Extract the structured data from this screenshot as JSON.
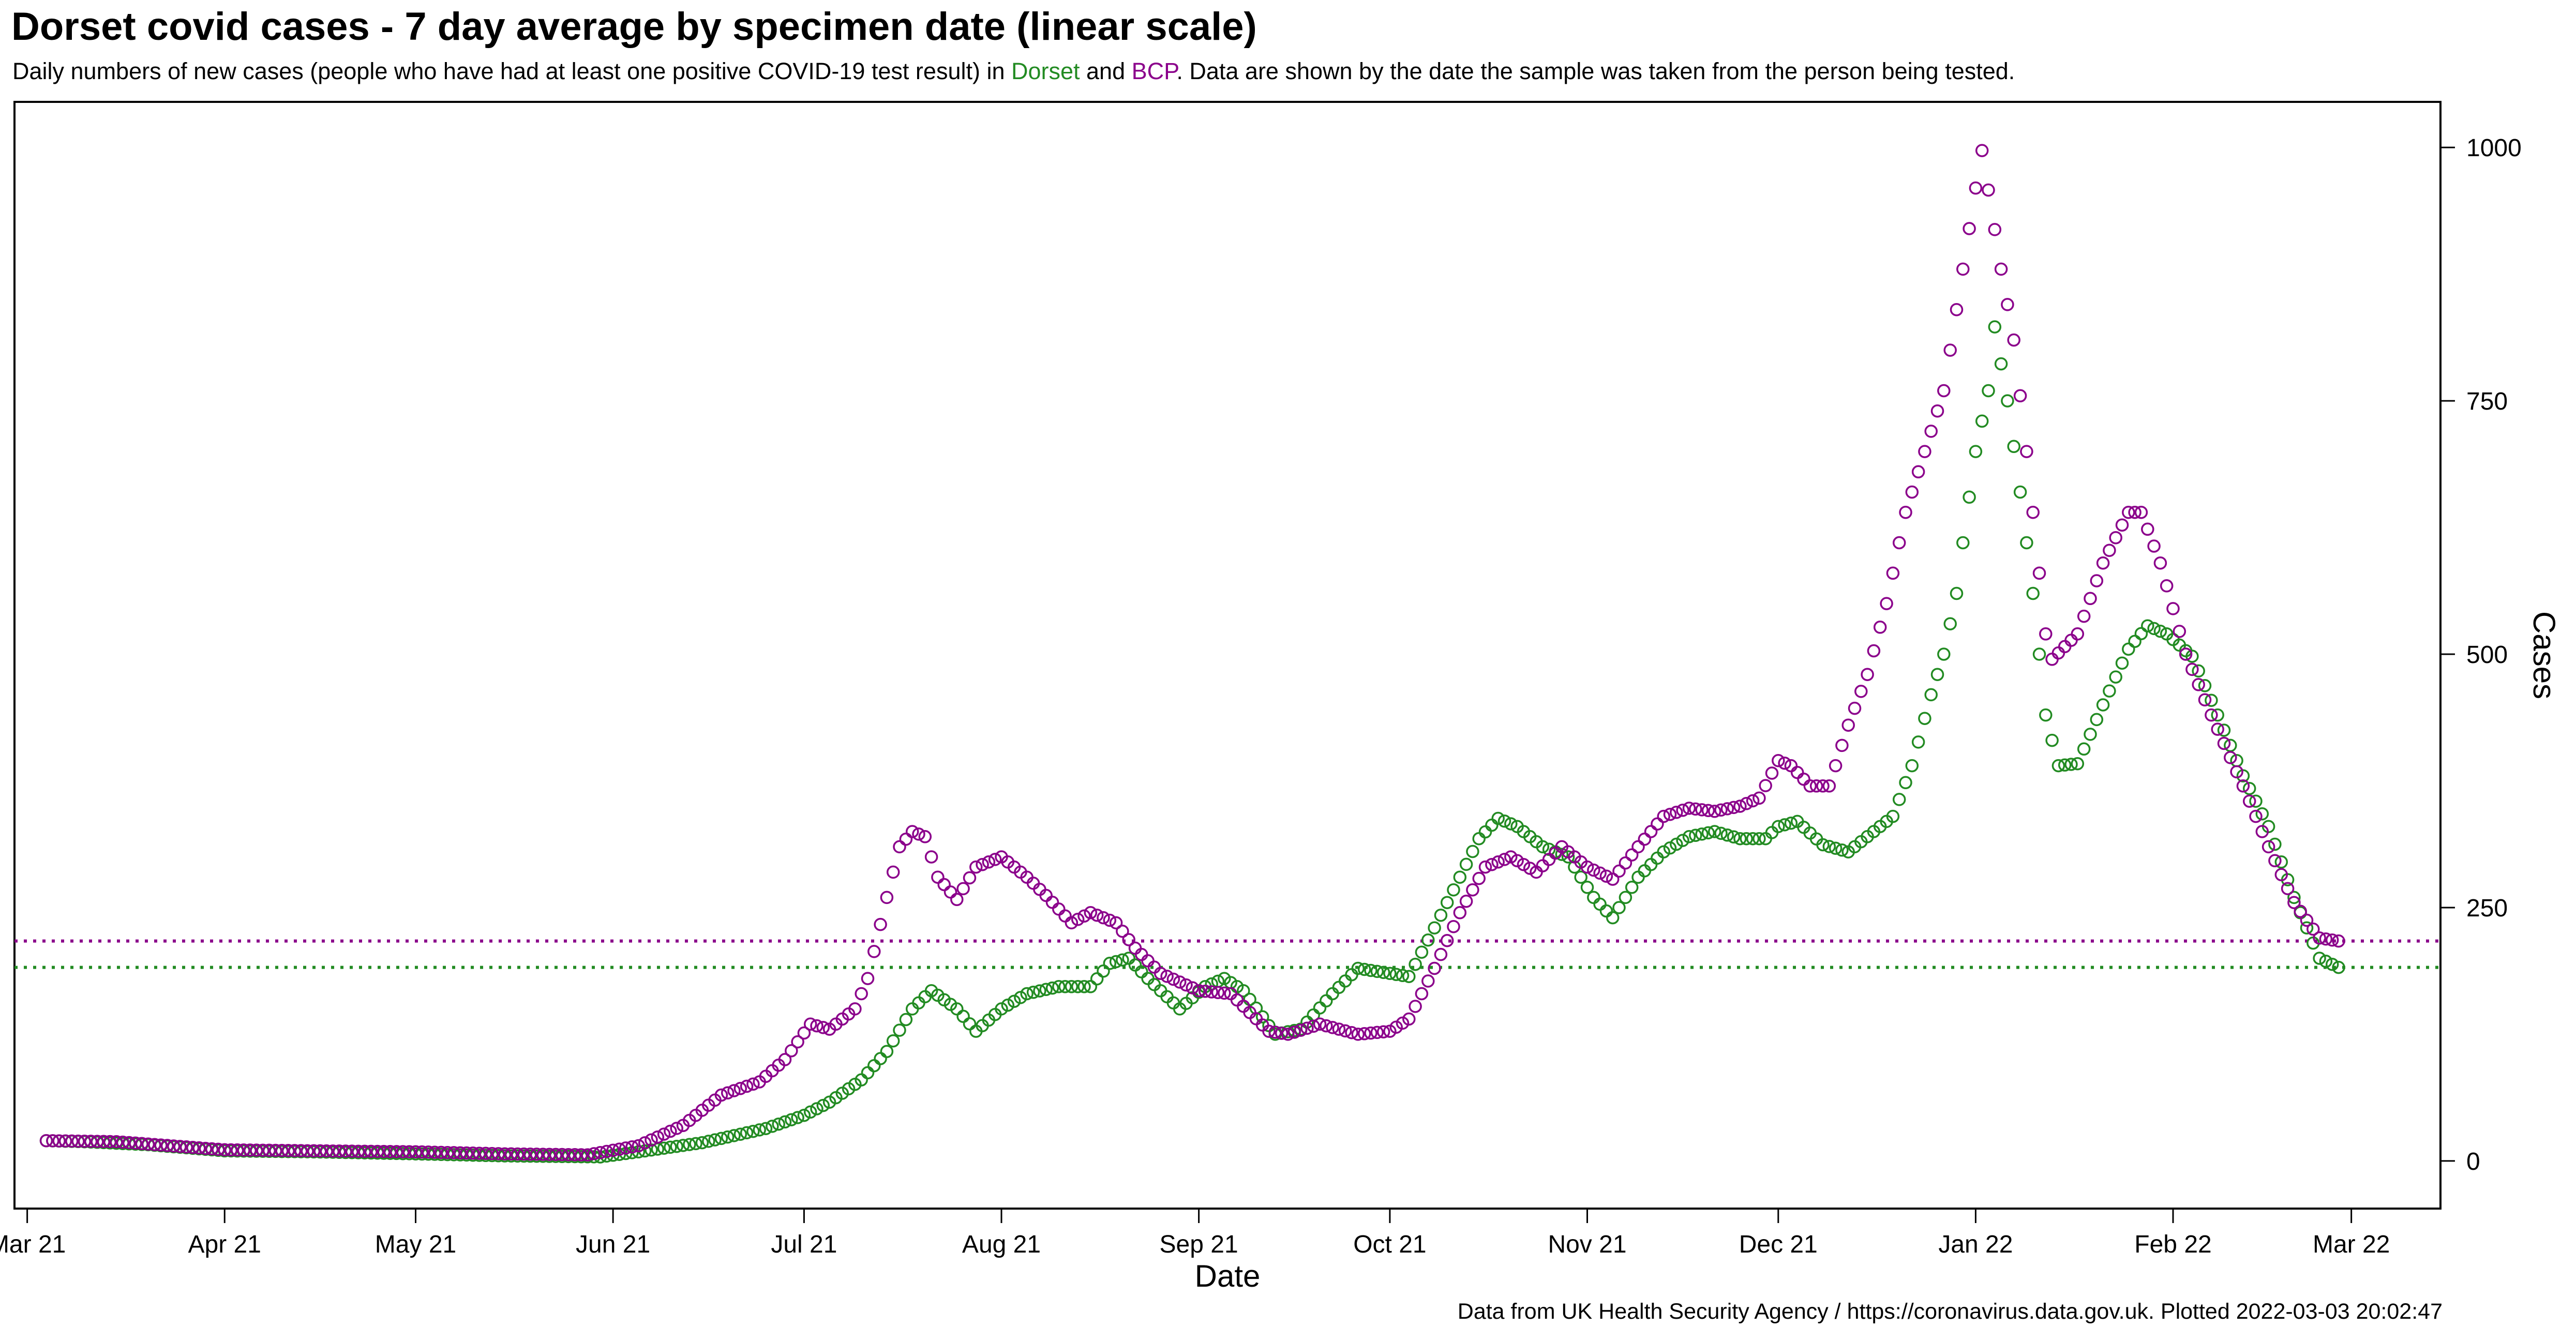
{
  "title": "Dorset covid cases - 7 day average by specimen date (linear scale)",
  "subtitle": {
    "before": "Daily numbers of new cases (people who have had at least one positive COVID-19 test result) in ",
    "dorset": "Dorset",
    "middle": " and ",
    "bcp": "BCP",
    "after": ". Data are shown by the date the sample was taken from the person being tested."
  },
  "footer": "Data from UK Health Security Agency / https://coronavirus.data.gov.uk. Plotted 2022-03-03 20:02:47",
  "colors": {
    "Dorset": "#228B22",
    "BCP": "#8B008B"
  },
  "chart_data": {
    "type": "scatter",
    "xlabel": "Date",
    "ylabel": "Cases",
    "x_ticks": [
      {
        "date": "2021-03-01",
        "label": "Mar 21"
      },
      {
        "date": "2021-04-01",
        "label": "Apr 21"
      },
      {
        "date": "2021-05-01",
        "label": "May 21"
      },
      {
        "date": "2021-06-01",
        "label": "Jun 21"
      },
      {
        "date": "2021-07-01",
        "label": "Jul 21"
      },
      {
        "date": "2021-08-01",
        "label": "Aug 21"
      },
      {
        "date": "2021-09-01",
        "label": "Sep 21"
      },
      {
        "date": "2021-10-01",
        "label": "Oct 21"
      },
      {
        "date": "2021-11-01",
        "label": "Nov 21"
      },
      {
        "date": "2021-12-01",
        "label": "Dec 21"
      },
      {
        "date": "2022-01-01",
        "label": "Jan 22"
      },
      {
        "date": "2022-02-01",
        "label": "Feb 22"
      },
      {
        "date": "2022-03-01",
        "label": "Mar 22"
      }
    ],
    "xlim": [
      "2021-02-27",
      "2022-03-15"
    ],
    "y_ticks": [
      0,
      250,
      500,
      750,
      1000
    ],
    "ylim": [
      -47,
      1045
    ],
    "y_axis_side": "right",
    "grid": false,
    "reference_lines": [
      {
        "series": "BCP",
        "y": 217
      },
      {
        "series": "Dorset",
        "y": 191
      }
    ],
    "series_sampling": {
      "start": "2021-03-04",
      "step_days": 1
    },
    "series": [
      {
        "name": "Dorset",
        "anchors": [
          [
            "2021-03-04",
            20
          ],
          [
            "2021-03-10",
            19
          ],
          [
            "2021-03-20",
            16
          ],
          [
            "2021-04-01",
            10
          ],
          [
            "2021-04-15",
            9
          ],
          [
            "2021-05-01",
            7
          ],
          [
            "2021-05-15",
            5
          ],
          [
            "2021-05-30",
            4
          ],
          [
            "2021-06-05",
            9
          ],
          [
            "2021-06-15",
            18
          ],
          [
            "2021-06-25",
            32
          ],
          [
            "2021-07-01",
            45
          ],
          [
            "2021-07-05",
            58
          ],
          [
            "2021-07-10",
            80
          ],
          [
            "2021-07-14",
            108
          ],
          [
            "2021-07-18",
            150
          ],
          [
            "2021-07-21",
            168
          ],
          [
            "2021-07-25",
            150
          ],
          [
            "2021-07-28",
            128
          ],
          [
            "2021-08-01",
            150
          ],
          [
            "2021-08-05",
            165
          ],
          [
            "2021-08-10",
            172
          ],
          [
            "2021-08-15",
            172
          ],
          [
            "2021-08-18",
            195
          ],
          [
            "2021-08-21",
            200
          ],
          [
            "2021-08-24",
            180
          ],
          [
            "2021-08-29",
            150
          ],
          [
            "2021-09-02",
            172
          ],
          [
            "2021-09-05",
            180
          ],
          [
            "2021-09-08",
            168
          ],
          [
            "2021-09-13",
            125
          ],
          [
            "2021-09-17",
            130
          ],
          [
            "2021-09-22",
            165
          ],
          [
            "2021-09-26",
            190
          ],
          [
            "2021-10-01",
            185
          ],
          [
            "2021-10-04",
            182
          ],
          [
            "2021-10-08",
            230
          ],
          [
            "2021-10-12",
            280
          ],
          [
            "2021-10-15",
            318
          ],
          [
            "2021-10-18",
            338
          ],
          [
            "2021-10-21",
            330
          ],
          [
            "2021-10-25",
            310
          ],
          [
            "2021-10-29",
            300
          ],
          [
            "2021-11-02",
            260
          ],
          [
            "2021-11-05",
            240
          ],
          [
            "2021-11-09",
            280
          ],
          [
            "2021-11-13",
            305
          ],
          [
            "2021-11-17",
            320
          ],
          [
            "2021-11-21",
            325
          ],
          [
            "2021-11-25",
            318
          ],
          [
            "2021-11-29",
            318
          ],
          [
            "2021-12-01",
            330
          ],
          [
            "2021-12-04",
            335
          ],
          [
            "2021-12-08",
            312
          ],
          [
            "2021-12-12",
            305
          ],
          [
            "2021-12-15",
            320
          ],
          [
            "2021-12-19",
            340
          ],
          [
            "2021-12-22",
            390
          ],
          [
            "2021-12-25",
            460
          ],
          [
            "2021-12-27",
            500
          ],
          [
            "2021-12-29",
            560
          ],
          [
            "2021-12-30",
            610
          ],
          [
            "2022-01-01",
            700
          ],
          [
            "2022-01-03",
            760
          ],
          [
            "2022-01-04",
            823
          ],
          [
            "2022-01-06",
            750
          ],
          [
            "2022-01-08",
            660
          ],
          [
            "2022-01-10",
            560
          ],
          [
            "2022-01-12",
            440
          ],
          [
            "2022-01-14",
            390
          ],
          [
            "2022-01-17",
            392
          ],
          [
            "2022-01-21",
            450
          ],
          [
            "2022-01-25",
            505
          ],
          [
            "2022-01-28",
            528
          ],
          [
            "2022-01-31",
            520
          ],
          [
            "2022-02-04",
            498
          ],
          [
            "2022-02-08",
            440
          ],
          [
            "2022-02-12",
            380
          ],
          [
            "2022-02-16",
            330
          ],
          [
            "2022-02-20",
            260
          ],
          [
            "2022-02-24",
            200
          ],
          [
            "2022-02-27",
            191
          ]
        ]
      },
      {
        "name": "BCP",
        "anchors": [
          [
            "2021-03-04",
            20
          ],
          [
            "2021-03-15",
            19
          ],
          [
            "2021-04-01",
            11
          ],
          [
            "2021-04-15",
            10
          ],
          [
            "2021-05-01",
            9
          ],
          [
            "2021-05-15",
            7
          ],
          [
            "2021-05-28",
            6
          ],
          [
            "2021-06-05",
            15
          ],
          [
            "2021-06-12",
            35
          ],
          [
            "2021-06-18",
            65
          ],
          [
            "2021-06-24",
            78
          ],
          [
            "2021-06-28",
            100
          ],
          [
            "2021-07-02",
            135
          ],
          [
            "2021-07-05",
            130
          ],
          [
            "2021-07-09",
            150
          ],
          [
            "2021-07-11",
            180
          ],
          [
            "2021-07-14",
            260
          ],
          [
            "2021-07-16",
            310
          ],
          [
            "2021-07-18",
            325
          ],
          [
            "2021-07-20",
            320
          ],
          [
            "2021-07-22",
            280
          ],
          [
            "2021-07-25",
            258
          ],
          [
            "2021-07-28",
            290
          ],
          [
            "2021-08-01",
            300
          ],
          [
            "2021-08-05",
            280
          ],
          [
            "2021-08-08",
            262
          ],
          [
            "2021-08-12",
            235
          ],
          [
            "2021-08-15",
            245
          ],
          [
            "2021-08-19",
            235
          ],
          [
            "2021-08-22",
            210
          ],
          [
            "2021-08-26",
            185
          ],
          [
            "2021-09-01",
            168
          ],
          [
            "2021-09-06",
            165
          ],
          [
            "2021-09-12",
            128
          ],
          [
            "2021-09-15",
            125
          ],
          [
            "2021-09-20",
            135
          ],
          [
            "2021-09-26",
            125
          ],
          [
            "2021-10-01",
            128
          ],
          [
            "2021-10-04",
            140
          ],
          [
            "2021-10-08",
            190
          ],
          [
            "2021-10-12",
            245
          ],
          [
            "2021-10-16",
            290
          ],
          [
            "2021-10-20",
            300
          ],
          [
            "2021-10-24",
            285
          ],
          [
            "2021-10-28",
            310
          ],
          [
            "2021-11-01",
            290
          ],
          [
            "2021-11-05",
            278
          ],
          [
            "2021-11-09",
            310
          ],
          [
            "2021-11-13",
            340
          ],
          [
            "2021-11-17",
            348
          ],
          [
            "2021-11-21",
            345
          ],
          [
            "2021-11-25",
            350
          ],
          [
            "2021-11-28",
            358
          ],
          [
            "2021-12-01",
            395
          ],
          [
            "2021-12-03",
            390
          ],
          [
            "2021-12-06",
            370
          ],
          [
            "2021-12-09",
            370
          ],
          [
            "2021-12-12",
            430
          ],
          [
            "2021-12-15",
            480
          ],
          [
            "2021-12-18",
            550
          ],
          [
            "2021-12-21",
            640
          ],
          [
            "2021-12-24",
            700
          ],
          [
            "2021-12-27",
            760
          ],
          [
            "2021-12-30",
            880
          ],
          [
            "2022-01-01",
            960
          ],
          [
            "2022-01-02",
            997
          ],
          [
            "2022-01-05",
            880
          ],
          [
            "2022-01-07",
            810
          ],
          [
            "2022-01-09",
            700
          ],
          [
            "2022-01-10",
            640
          ],
          [
            "2022-01-12",
            520
          ],
          [
            "2022-01-13",
            495
          ],
          [
            "2022-01-17",
            520
          ],
          [
            "2022-01-21",
            590
          ],
          [
            "2022-01-25",
            640
          ],
          [
            "2022-01-27",
            640
          ],
          [
            "2022-01-30",
            590
          ],
          [
            "2022-02-03",
            500
          ],
          [
            "2022-02-07",
            440
          ],
          [
            "2022-02-12",
            370
          ],
          [
            "2022-02-16",
            310
          ],
          [
            "2022-02-20",
            255
          ],
          [
            "2022-02-24",
            220
          ],
          [
            "2022-02-27",
            217
          ]
        ]
      }
    ]
  }
}
